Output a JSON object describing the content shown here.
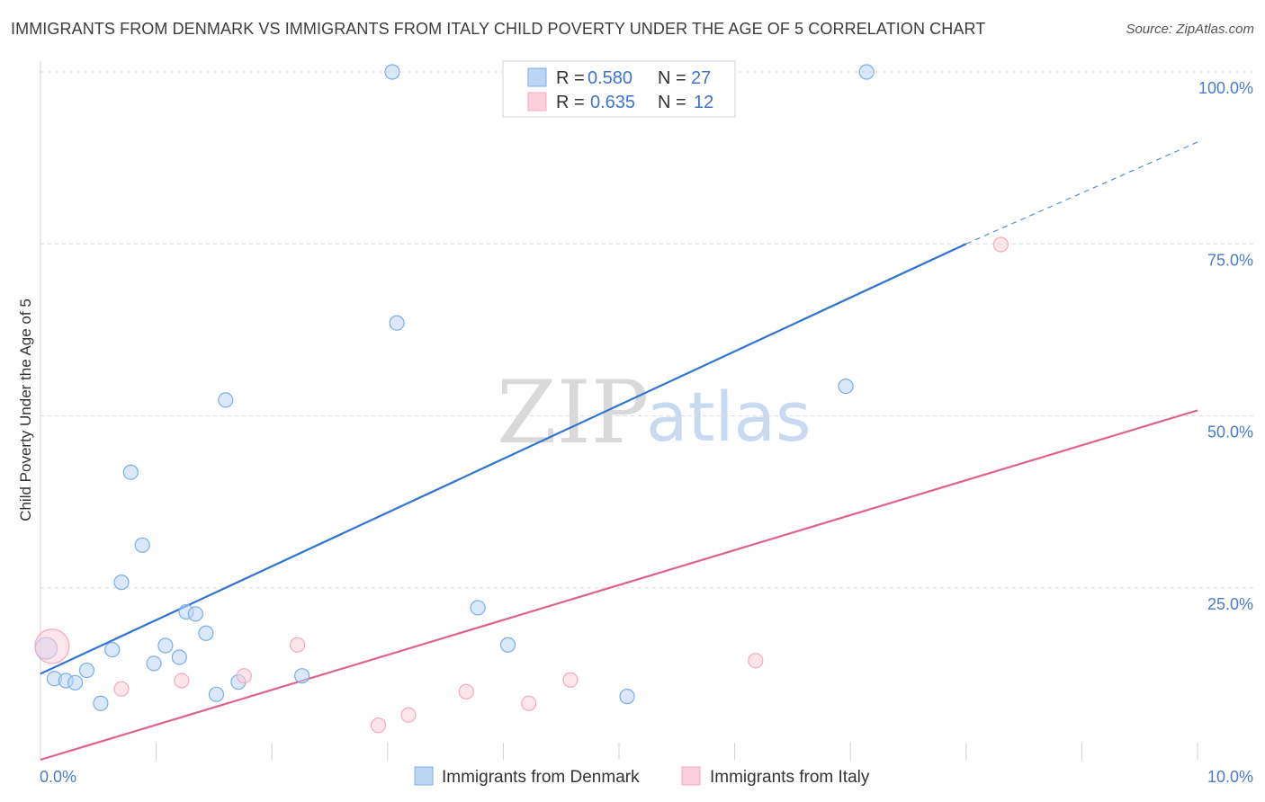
{
  "title": "IMMIGRANTS FROM DENMARK VS IMMIGRANTS FROM ITALY CHILD POVERTY UNDER THE AGE OF 5 CORRELATION CHART",
  "source": "Source: ZipAtlas.com",
  "watermark": {
    "zip": "ZIP",
    "atlas": "atlas"
  },
  "legend": {
    "denmark": {
      "r_label": "R =",
      "r_value": "0.580",
      "n_label": "N =",
      "n_value": "27"
    },
    "italy": {
      "r_label": "R =",
      "r_value": "0.635",
      "n_label": "N =",
      "n_value": "12"
    }
  },
  "chart_data": {
    "type": "scatter",
    "title": "IMMIGRANTS FROM DENMARK VS IMMIGRANTS FROM ITALY CHILD POVERTY UNDER THE AGE OF 5 CORRELATION CHART",
    "xlabel": "",
    "ylabel": "Child Poverty Under the Age of 5",
    "xlim": [
      0,
      10
    ],
    "ylim": [
      0,
      100
    ],
    "x_ticks": [
      "0.0%",
      "10.0%"
    ],
    "y_ticks": [
      "100.0%",
      "75.0%",
      "50.0%",
      "25.0%"
    ],
    "grid": true,
    "legend_position": "top-center",
    "series": [
      {
        "name": "Immigrants from Denmark",
        "color": "#7aaee8",
        "line_color": "#2f74d0",
        "points": [
          [
            0.05,
            16.2
          ],
          [
            0.12,
            11.8
          ],
          [
            0.22,
            11.5
          ],
          [
            0.3,
            11.2
          ],
          [
            0.4,
            13.0
          ],
          [
            0.52,
            8.2
          ],
          [
            0.62,
            16.0
          ],
          [
            0.7,
            25.8
          ],
          [
            0.78,
            41.8
          ],
          [
            0.88,
            31.2
          ],
          [
            0.98,
            14.0
          ],
          [
            1.08,
            16.6
          ],
          [
            1.2,
            14.9
          ],
          [
            1.26,
            21.5
          ],
          [
            1.34,
            21.2
          ],
          [
            1.43,
            18.4
          ],
          [
            1.52,
            9.5
          ],
          [
            1.6,
            52.3
          ],
          [
            1.71,
            11.3
          ],
          [
            2.26,
            12.2
          ],
          [
            3.04,
            100.0
          ],
          [
            3.08,
            63.5
          ],
          [
            3.78,
            22.1
          ],
          [
            4.04,
            16.7
          ],
          [
            5.07,
            9.2
          ],
          [
            6.96,
            54.3
          ],
          [
            7.14,
            100.0
          ]
        ],
        "trend": {
          "x": [
            0,
            8.0
          ],
          "y": [
            12.5,
            75.0
          ],
          "dashed_to": [
            10.0,
            89.8
          ]
        }
      },
      {
        "name": "Immigrants from Italy",
        "color": "#f4a9c0",
        "line_color": "#e0628c",
        "points": [
          [
            0.1,
            16.5
          ],
          [
            0.7,
            10.3
          ],
          [
            1.22,
            11.5
          ],
          [
            1.76,
            12.2
          ],
          [
            2.22,
            16.7
          ],
          [
            2.92,
            5.0
          ],
          [
            3.18,
            6.5
          ],
          [
            3.68,
            9.9
          ],
          [
            4.22,
            8.2
          ],
          [
            4.58,
            11.6
          ],
          [
            6.18,
            14.4
          ],
          [
            8.3,
            74.9
          ]
        ],
        "trend": {
          "x": [
            0,
            10.0
          ],
          "y": [
            0,
            50.8
          ]
        }
      }
    ]
  }
}
